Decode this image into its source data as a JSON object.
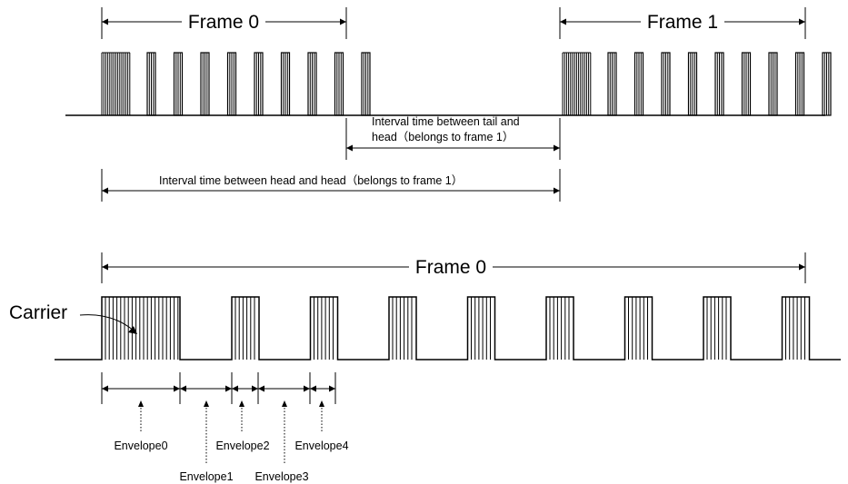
{
  "labels": {
    "frame0_top": "Frame 0",
    "frame1_top": "Frame 1",
    "interval_tail_head_line1": "Interval time between tail and",
    "interval_tail_head_line2": "head（belongs to frame 1）",
    "interval_head_head": "Interval time between head and head（belongs to frame 1）",
    "frame0_bottom": "Frame 0",
    "carrier": "Carrier",
    "envelopes": [
      "Envelope0",
      "Envelope1",
      "Envelope2",
      "Envelope3",
      "Envelope4"
    ]
  }
}
